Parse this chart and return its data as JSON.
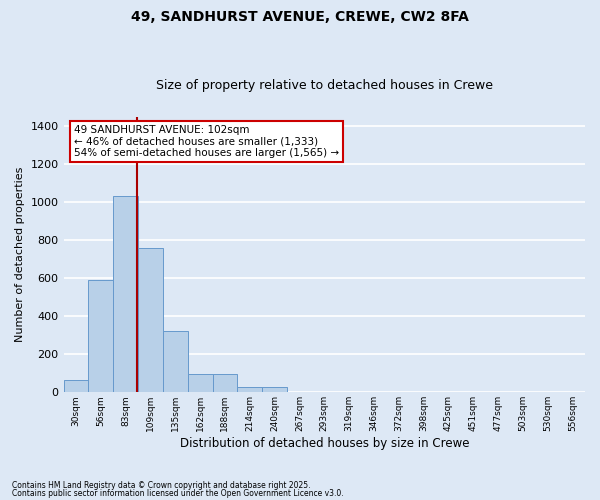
{
  "title1": "49, SANDHURST AVENUE, CREWE, CW2 8FA",
  "title2": "Size of property relative to detached houses in Crewe",
  "xlabel": "Distribution of detached houses by size in Crewe",
  "ylabel": "Number of detached properties",
  "categories": [
    "30sqm",
    "56sqm",
    "83sqm",
    "109sqm",
    "135sqm",
    "162sqm",
    "188sqm",
    "214sqm",
    "240sqm",
    "267sqm",
    "293sqm",
    "319sqm",
    "346sqm",
    "372sqm",
    "398sqm",
    "425sqm",
    "451sqm",
    "477sqm",
    "503sqm",
    "530sqm",
    "556sqm"
  ],
  "values": [
    65,
    590,
    1035,
    760,
    320,
    95,
    95,
    30,
    30,
    0,
    0,
    0,
    0,
    0,
    0,
    0,
    0,
    0,
    0,
    0,
    0
  ],
  "bar_color": "#b8d0e8",
  "bar_edge_color": "#6699cc",
  "vline_x": 2.45,
  "vline_color": "#aa0000",
  "annotation_text": "49 SANDHURST AVENUE: 102sqm\n← 46% of detached houses are smaller (1,333)\n54% of semi-detached houses are larger (1,565) →",
  "annotation_box_color": "white",
  "annotation_box_edge": "#cc0000",
  "ylim": [
    0,
    1450
  ],
  "background_color": "#dde8f5",
  "grid_color": "white",
  "footer1": "Contains HM Land Registry data © Crown copyright and database right 2025.",
  "footer2": "Contains public sector information licensed under the Open Government Licence v3.0.",
  "title_fontsize": 10,
  "subtitle_fontsize": 9,
  "bar_width": 1.0
}
